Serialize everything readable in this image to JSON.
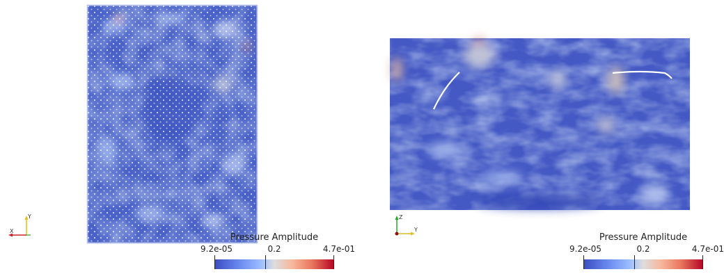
{
  "views": [
    {
      "id": "left",
      "legend": {
        "title": "Pressure Amplitude",
        "min_label": "9.2e-05",
        "mid_label": "0.2",
        "max_label": "4.7e-01"
      },
      "axes": {
        "horizontal": "X",
        "vertical": "Y"
      },
      "colors": {
        "low": "#3b4cc0",
        "mid": "#dddddd",
        "high": "#b40426"
      }
    },
    {
      "id": "right",
      "legend": {
        "title": "Pressure Amplitude",
        "min_label": "9.2e-05",
        "mid_label": "0.2",
        "max_label": "4.7e-01"
      },
      "axes": {
        "horizontal": "Y",
        "vertical": "Z"
      },
      "colors": {
        "low": "#3b4cc0",
        "mid": "#dddddd",
        "high": "#b40426"
      }
    }
  ]
}
